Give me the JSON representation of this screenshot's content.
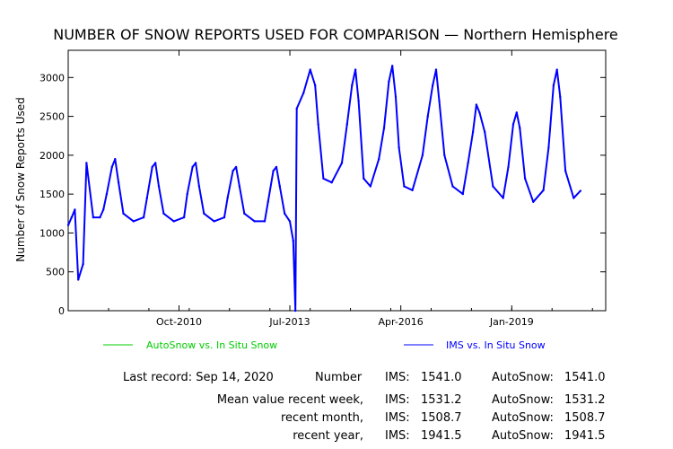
{
  "chart_data": {
    "type": "line",
    "title": "NUMBER OF SNOW REPORTS USED FOR COMPARISON — Northern Hemisphere",
    "ylabel": "Number of Snow Reports Used",
    "xlabel": "",
    "ylim": [
      0,
      3350
    ],
    "xlim": [
      "2008-01-01",
      "2021-05-01"
    ],
    "y_ticks": [
      0,
      500,
      1000,
      1500,
      2000,
      2500,
      3000
    ],
    "x_ticks": [
      {
        "date": "2010-10-01",
        "label": "Oct-2010"
      },
      {
        "date": "2013-07-01",
        "label": "Jul-2013"
      },
      {
        "date": "2016-04-01",
        "label": "Apr-2016"
      },
      {
        "date": "2019-01-01",
        "label": "Jan-2019"
      }
    ],
    "grid": false,
    "series": [
      {
        "name": "AutoSnow vs. In Situ Snow",
        "color": "#00cc00",
        "values": []
      },
      {
        "name": "IMS vs. In Situ Snow",
        "color": "#0000ff",
        "x": [
          "2008-01-01",
          "2008-02-01",
          "2008-03-01",
          "2008-04-01",
          "2008-05-15",
          "2008-06-15",
          "2008-08-15",
          "2008-10-15",
          "2008-11-15",
          "2008-12-15",
          "2009-02-01",
          "2009-03-01",
          "2009-04-01",
          "2009-05-15",
          "2009-08-15",
          "2009-11-15",
          "2009-12-15",
          "2010-02-01",
          "2010-03-01",
          "2010-04-01",
          "2010-05-15",
          "2010-08-15",
          "2010-11-15",
          "2010-12-15",
          "2011-02-01",
          "2011-03-01",
          "2011-04-01",
          "2011-05-15",
          "2011-08-15",
          "2011-11-15",
          "2011-12-15",
          "2012-02-01",
          "2012-03-01",
          "2012-04-01",
          "2012-05-15",
          "2012-08-15",
          "2012-11-15",
          "2012-12-15",
          "2013-02-01",
          "2013-03-01",
          "2013-04-01",
          "2013-05-15",
          "2013-07-01",
          "2013-08-01",
          "2013-08-20",
          "2013-09-01",
          "2013-11-01",
          "2014-01-01",
          "2014-02-15",
          "2014-03-15",
          "2014-05-01",
          "2014-07-15",
          "2014-10-15",
          "2014-12-01",
          "2015-01-15",
          "2015-02-15",
          "2015-03-15",
          "2015-05-01",
          "2015-07-01",
          "2015-09-15",
          "2015-11-01",
          "2015-12-15",
          "2016-01-15",
          "2016-02-15",
          "2016-03-15",
          "2016-05-01",
          "2016-07-15",
          "2016-10-15",
          "2016-12-01",
          "2017-01-15",
          "2017-02-15",
          "2017-03-15",
          "2017-05-01",
          "2017-07-15",
          "2017-10-15",
          "2017-12-01",
          "2018-01-15",
          "2018-02-15",
          "2018-03-15",
          "2018-05-01",
          "2018-07-15",
          "2018-10-15",
          "2018-12-01",
          "2019-01-15",
          "2019-02-15",
          "2019-03-15",
          "2019-05-01",
          "2019-07-15",
          "2019-10-15",
          "2019-12-01",
          "2020-01-15",
          "2020-02-15",
          "2020-03-15",
          "2020-05-01",
          "2020-07-15",
          "2020-09-14"
        ],
        "values": [
          1100,
          1200,
          1300,
          400,
          600,
          1900,
          1200,
          1200,
          1300,
          1500,
          1850,
          1950,
          1650,
          1250,
          1150,
          1200,
          1450,
          1850,
          1900,
          1600,
          1250,
          1150,
          1200,
          1500,
          1850,
          1900,
          1600,
          1250,
          1150,
          1200,
          1450,
          1800,
          1850,
          1600,
          1250,
          1150,
          1150,
          1400,
          1800,
          1850,
          1600,
          1250,
          1150,
          900,
          0,
          2600,
          2800,
          3100,
          2900,
          2400,
          1700,
          1650,
          1900,
          2400,
          2900,
          3100,
          2700,
          1700,
          1600,
          1950,
          2350,
          2950,
          3150,
          2750,
          2100,
          1600,
          1550,
          2000,
          2500,
          2900,
          3100,
          2700,
          2000,
          1600,
          1500,
          1900,
          2300,
          2650,
          2550,
          2300,
          1600,
          1450,
          1850,
          2400,
          2550,
          2350,
          1700,
          1400,
          1550,
          2100,
          2900,
          3100,
          2750,
          1800,
          1450,
          1541
        ]
      }
    ]
  },
  "legend": {
    "autosnow_label": "AutoSnow vs. In Situ Snow",
    "ims_label": "IMS vs. In Situ Snow",
    "autosnow_color": "#00cc00",
    "ims_color": "#0000ff"
  },
  "stats": {
    "last_record": "Last record: Sep 14, 2020",
    "number_label": "Number",
    "ims_label": "IMS:",
    "autosnow_label": "AutoSnow:",
    "number_ims": "1541.0",
    "number_autosnow": "1541.0",
    "mean_week_label": "Mean value recent week,",
    "week_ims": "1531.2",
    "week_autosnow": "1531.2",
    "month_label": "recent month,",
    "month_ims": "1508.7",
    "month_autosnow": "1508.7",
    "year_label": "recent year,",
    "year_ims": "1941.5",
    "year_autosnow": "1941.5"
  }
}
